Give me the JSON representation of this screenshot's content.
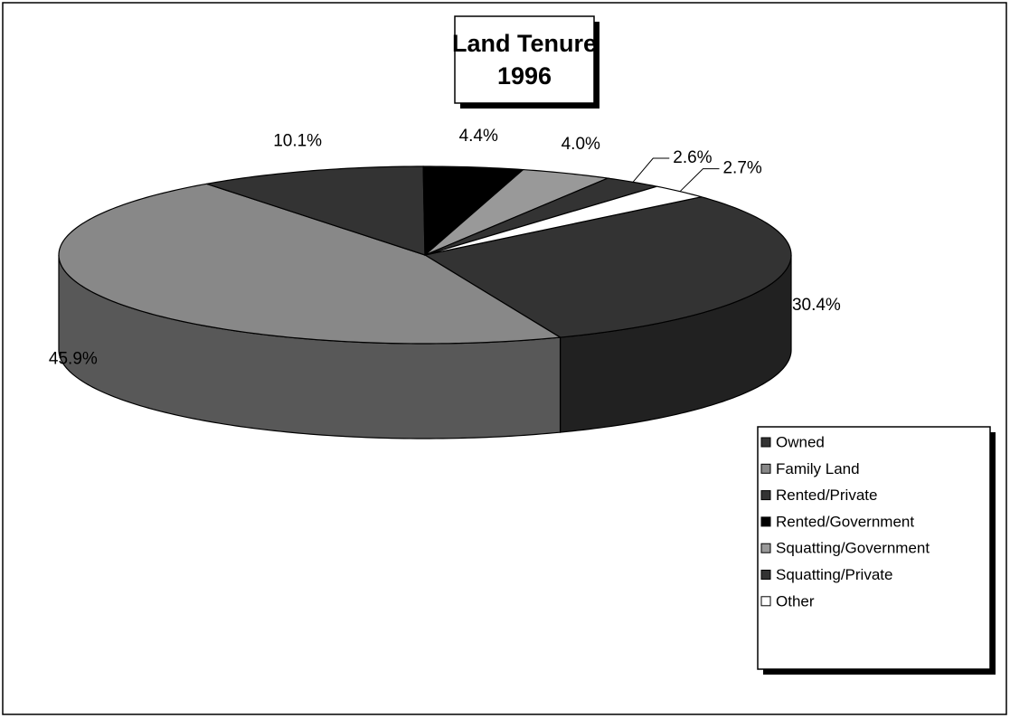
{
  "chart_data": {
    "type": "pie3d",
    "title": "Land Tenure",
    "subtitle": "1996",
    "categories": [
      "Owned",
      "Family Land",
      "Rented/Private",
      "Rented/Government",
      "Squatting/Government",
      "Squatting/Private",
      "Other"
    ],
    "values": [
      30.4,
      45.9,
      10.1,
      4.4,
      4.0,
      2.6,
      2.7
    ],
    "value_labels": [
      "30.4%",
      "45.9%",
      "10.1%",
      "4.4%",
      "4.0%",
      "2.6%",
      "2.7%"
    ],
    "colors": [
      "#333333",
      "#888888",
      "#333333",
      "#000000",
      "#999999",
      "#333333",
      "#ffffff"
    ],
    "legend": "bottom-right"
  }
}
